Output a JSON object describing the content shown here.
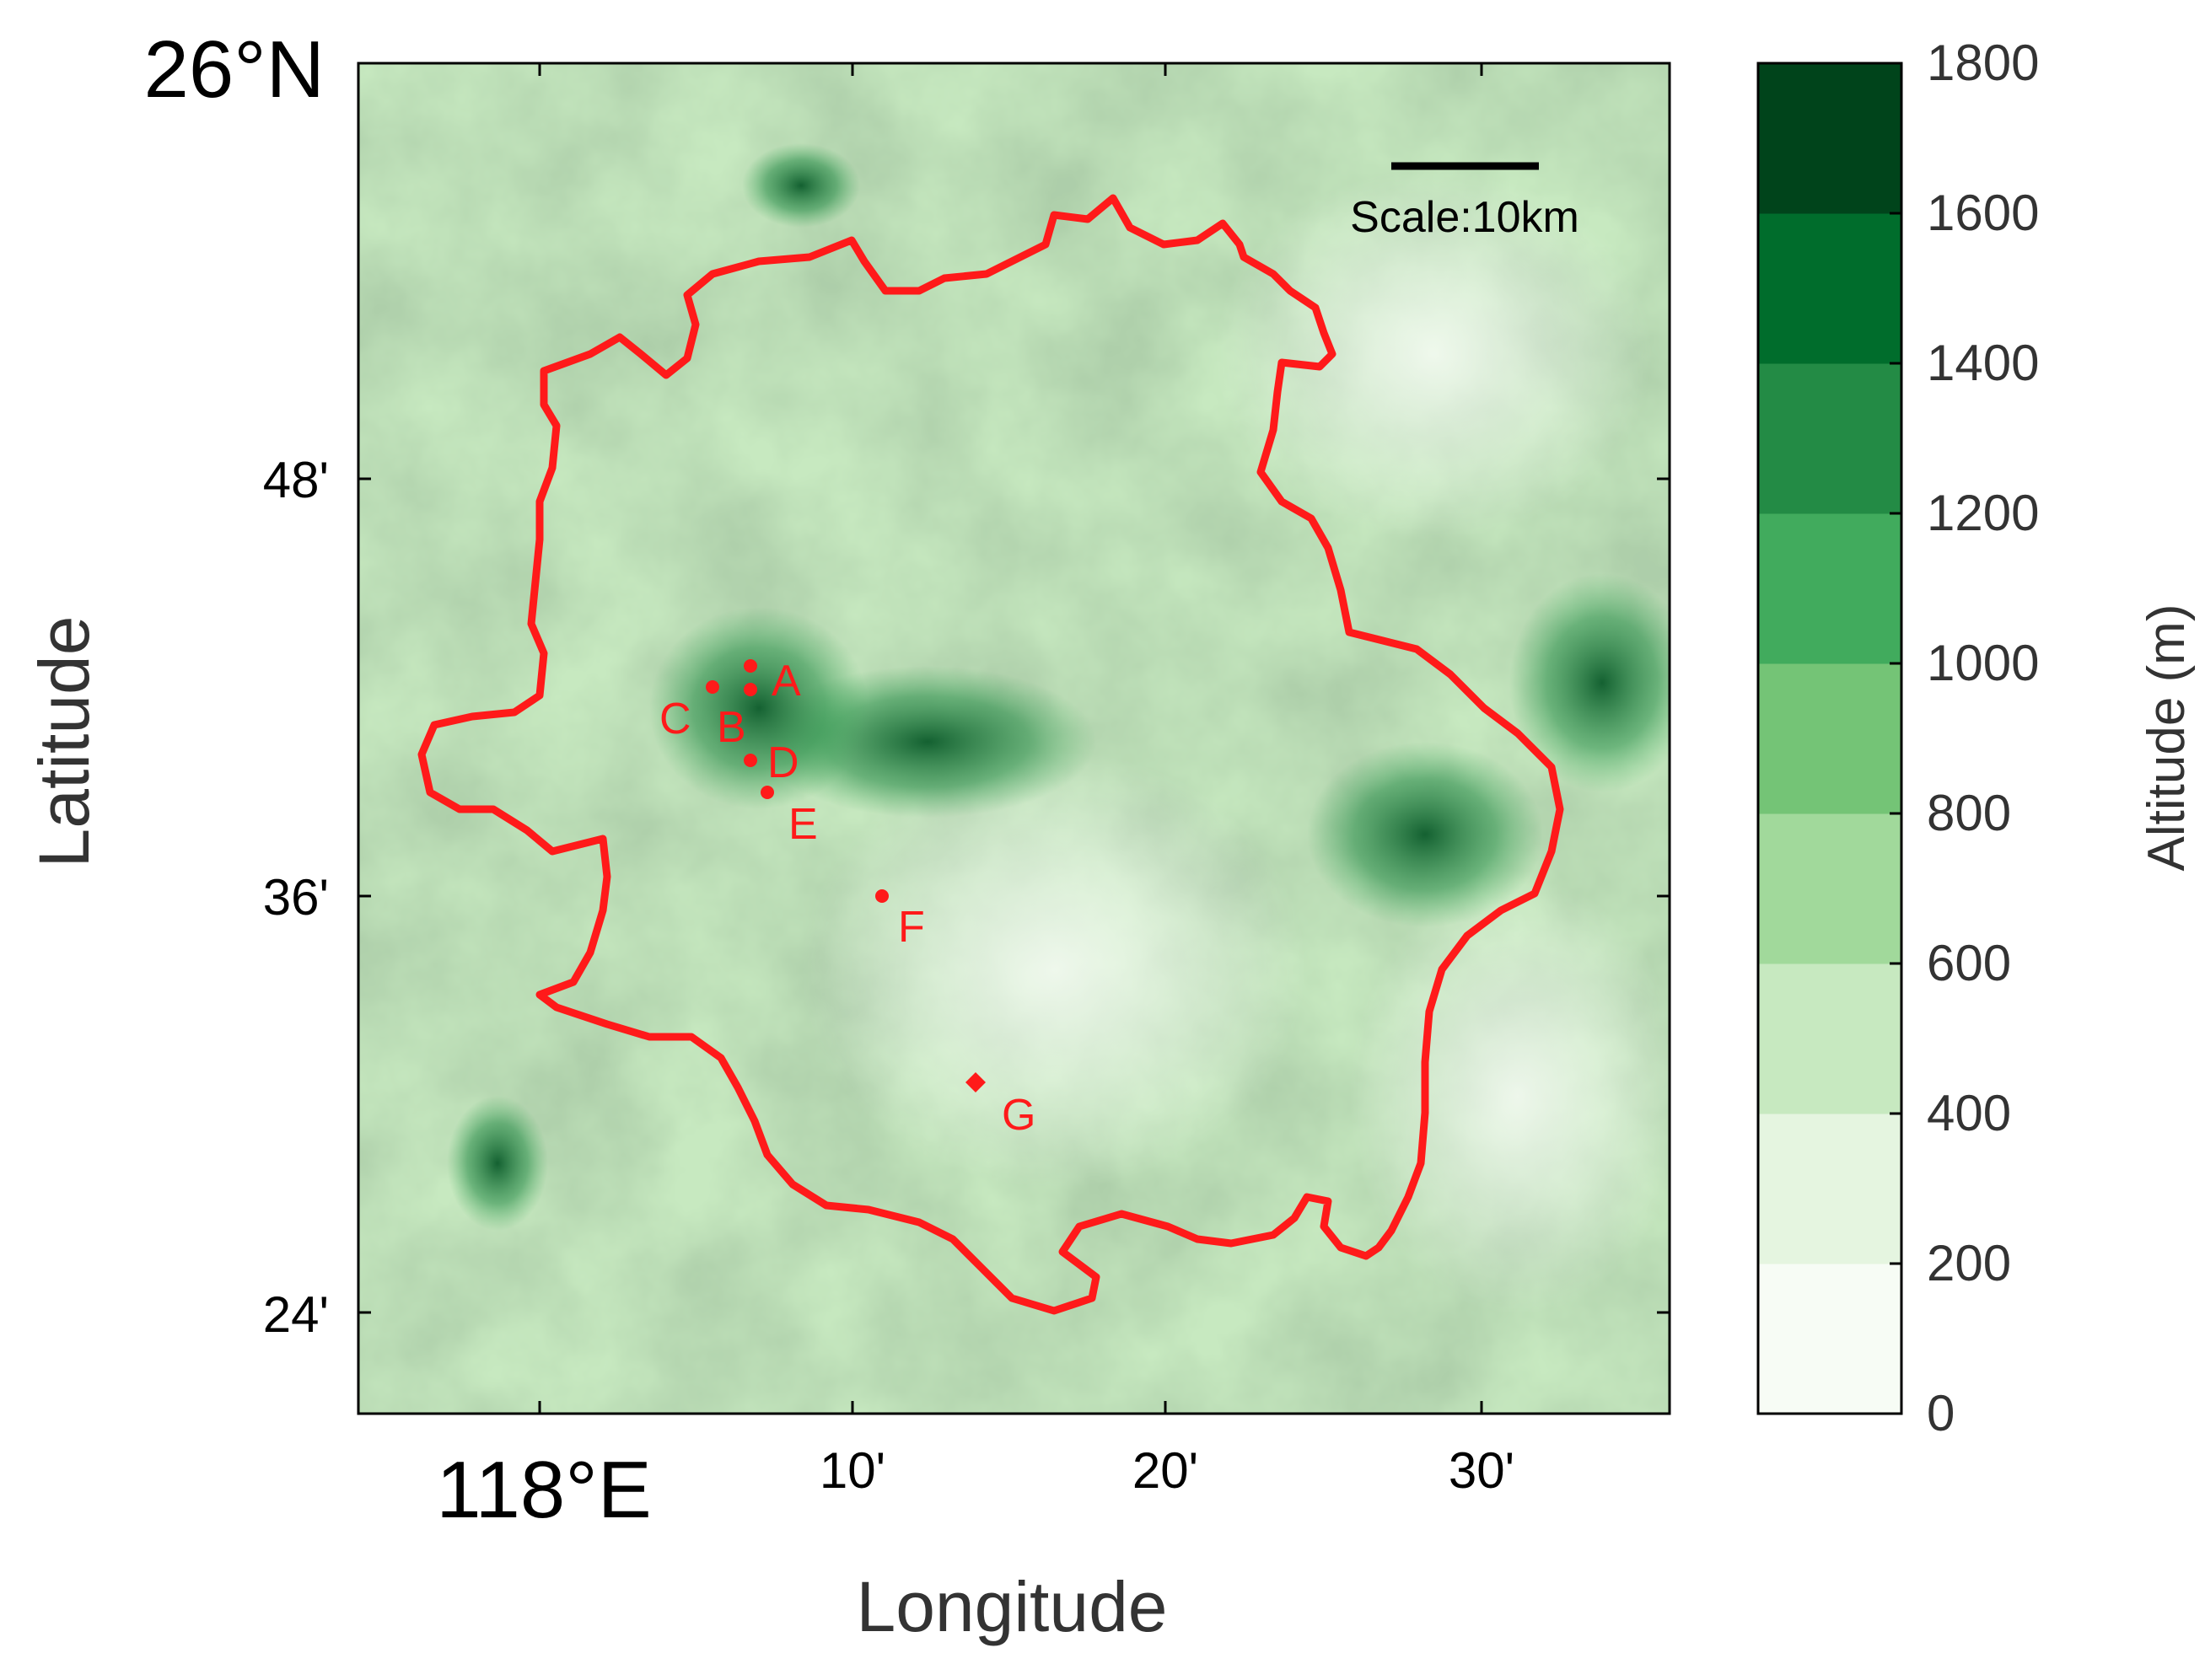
{
  "map": {
    "corner_lat_label": "26°N",
    "corner_lon_label": "118°E",
    "xlabel": "Longitude",
    "ylabel": "Latitude",
    "x_ticks": [
      "10'",
      "20'",
      "30'"
    ],
    "y_ticks": [
      "48'",
      "36'",
      "24'"
    ],
    "scale_bar_label": "Scale:10km",
    "boundary_color": "#ff1a1a",
    "sites": [
      {
        "label": "A"
      },
      {
        "label": "B"
      },
      {
        "label": "C"
      },
      {
        "label": "D"
      },
      {
        "label": "E"
      },
      {
        "label": "F"
      },
      {
        "label": "G"
      }
    ]
  },
  "colorbar": {
    "label": "Altitude (m)",
    "ticks": [
      "0",
      "200",
      "400",
      "600",
      "800",
      "1000",
      "1200",
      "1400",
      "1600",
      "1800"
    ],
    "colors": [
      "#f7fcf5",
      "#e5f5e0",
      "#c7e9c0",
      "#a1d99b",
      "#74c476",
      "#41ab5d",
      "#238b45",
      "#006d2c",
      "#00441b"
    ]
  }
}
